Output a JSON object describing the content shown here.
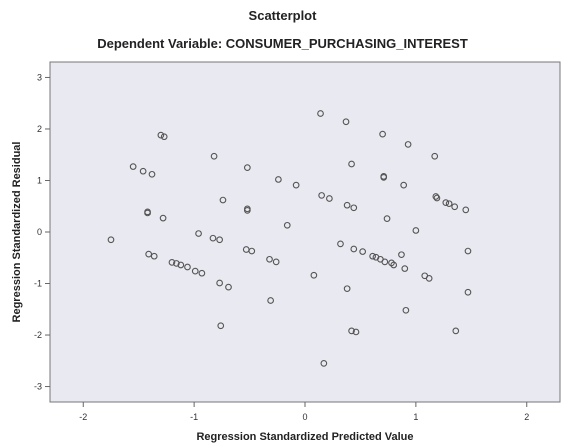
{
  "chart_data": {
    "type": "scatter",
    "title": "Scatterplot",
    "subtitle": "Dependent Variable: CONSUMER_PURCHASING_INTEREST",
    "xlabel": "Regression Standardized Predicted Value",
    "ylabel": "Regression Standardized Residual",
    "xlim": [
      -2.3,
      2.3
    ],
    "ylim": [
      -3.3,
      3.3
    ],
    "xticks": [
      -2,
      -1,
      0,
      1,
      2
    ],
    "yticks": [
      3,
      2,
      1,
      0,
      -1,
      -2,
      -3
    ],
    "xtick_labels": [
      "-2",
      "-1",
      "0",
      "1",
      "2"
    ],
    "ytick_labels": [
      "3",
      "2",
      "1",
      "0",
      "-1",
      "-2",
      "-3"
    ],
    "grid": false,
    "colors": {
      "plot_bg": "#e9e9f1",
      "marker": "#555555",
      "axis": "#666666"
    },
    "points": [
      {
        "x": -1.75,
        "y": -0.15
      },
      {
        "x": -1.55,
        "y": 1.27
      },
      {
        "x": -1.46,
        "y": 1.18
      },
      {
        "x": -1.42,
        "y": 0.39
      },
      {
        "x": -1.42,
        "y": 0.37
      },
      {
        "x": -1.41,
        "y": -0.43
      },
      {
        "x": -1.38,
        "y": 1.12
      },
      {
        "x": -1.36,
        "y": -0.47
      },
      {
        "x": -1.3,
        "y": 1.88
      },
      {
        "x": -1.27,
        "y": 1.85
      },
      {
        "x": -1.28,
        "y": 0.27
      },
      {
        "x": -1.2,
        "y": -0.59
      },
      {
        "x": -1.16,
        "y": -0.61
      },
      {
        "x": -1.12,
        "y": -0.64
      },
      {
        "x": -1.06,
        "y": -0.68
      },
      {
        "x": -0.99,
        "y": -0.76
      },
      {
        "x": -0.93,
        "y": -0.8
      },
      {
        "x": -0.96,
        "y": -0.03
      },
      {
        "x": -0.83,
        "y": -0.12
      },
      {
        "x": -0.82,
        "y": 1.47
      },
      {
        "x": -0.77,
        "y": -0.15
      },
      {
        "x": -0.77,
        "y": -0.99
      },
      {
        "x": -0.74,
        "y": 0.62
      },
      {
        "x": -0.76,
        "y": -1.82
      },
      {
        "x": -0.69,
        "y": -1.07
      },
      {
        "x": -0.52,
        "y": 1.25
      },
      {
        "x": -0.52,
        "y": 0.45
      },
      {
        "x": -0.52,
        "y": 0.42
      },
      {
        "x": -0.53,
        "y": -0.34
      },
      {
        "x": -0.48,
        "y": -0.37
      },
      {
        "x": -0.32,
        "y": -0.53
      },
      {
        "x": -0.26,
        "y": -0.58
      },
      {
        "x": -0.24,
        "y": 1.02
      },
      {
        "x": -0.16,
        "y": 0.13
      },
      {
        "x": -0.08,
        "y": 0.91
      },
      {
        "x": -0.31,
        "y": -1.33
      },
      {
        "x": 0.08,
        "y": -0.84
      },
      {
        "x": 0.14,
        "y": 2.3
      },
      {
        "x": 0.15,
        "y": 0.71
      },
      {
        "x": 0.22,
        "y": 0.65
      },
      {
        "x": 0.17,
        "y": -2.55
      },
      {
        "x": 0.32,
        "y": -0.23
      },
      {
        "x": 0.37,
        "y": 2.14
      },
      {
        "x": 0.38,
        "y": 0.52
      },
      {
        "x": 0.38,
        "y": -1.1
      },
      {
        "x": 0.42,
        "y": 1.32
      },
      {
        "x": 0.44,
        "y": 0.47
      },
      {
        "x": 0.44,
        "y": -0.33
      },
      {
        "x": 0.42,
        "y": -1.92
      },
      {
        "x": 0.46,
        "y": -1.94
      },
      {
        "x": 0.52,
        "y": -0.38
      },
      {
        "x": 0.61,
        "y": -0.47
      },
      {
        "x": 0.64,
        "y": -0.49
      },
      {
        "x": 0.68,
        "y": -0.53
      },
      {
        "x": 0.7,
        "y": 1.9
      },
      {
        "x": 0.71,
        "y": 1.08
      },
      {
        "x": 0.71,
        "y": 1.06
      },
      {
        "x": 0.72,
        "y": -0.58
      },
      {
        "x": 0.74,
        "y": 0.26
      },
      {
        "x": 0.78,
        "y": -0.6
      },
      {
        "x": 0.8,
        "y": -0.64
      },
      {
        "x": 0.87,
        "y": -0.44
      },
      {
        "x": 0.89,
        "y": 0.91
      },
      {
        "x": 0.9,
        "y": -0.71
      },
      {
        "x": 0.91,
        "y": -1.52
      },
      {
        "x": 0.93,
        "y": 1.7
      },
      {
        "x": 1.0,
        "y": 0.03
      },
      {
        "x": 1.08,
        "y": -0.85
      },
      {
        "x": 1.12,
        "y": -0.9
      },
      {
        "x": 1.17,
        "y": 1.47
      },
      {
        "x": 1.18,
        "y": 0.69
      },
      {
        "x": 1.19,
        "y": 0.66
      },
      {
        "x": 1.27,
        "y": 0.57
      },
      {
        "x": 1.3,
        "y": 0.55
      },
      {
        "x": 1.35,
        "y": 0.49
      },
      {
        "x": 1.36,
        "y": -1.92
      },
      {
        "x": 1.45,
        "y": 0.43
      },
      {
        "x": 1.47,
        "y": -0.37
      },
      {
        "x": 1.47,
        "y": -1.17
      }
    ]
  }
}
